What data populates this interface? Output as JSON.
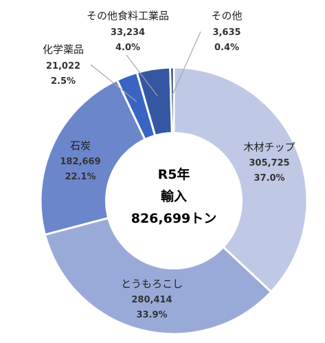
{
  "chart_data": {
    "type": "pie",
    "donut": true,
    "center_label": {
      "line1": "R5年",
      "line2": "輸入",
      "line3": "826,699トン"
    },
    "slices": [
      {
        "name": "木材チップ",
        "value": 305725,
        "value_label": "305,725",
        "percent": "37.0%",
        "color": "#bfc8e4"
      },
      {
        "name": "とうもろこし",
        "value": 280414,
        "value_label": "280,414",
        "percent": "33.9%",
        "color": "#9aaad8"
      },
      {
        "name": "石炭",
        "value": 182669,
        "value_label": "182,669",
        "percent": "22.1%",
        "color": "#6c86cb"
      },
      {
        "name": "化学薬品",
        "value": 21022,
        "value_label": "21,022",
        "percent": "2.5%",
        "color": "#3a64c3"
      },
      {
        "name": "その他食料工業品",
        "value": 33234,
        "value_label": "33,234",
        "percent": "4.0%",
        "color": "#3556a3"
      },
      {
        "name": "その他",
        "value": 3635,
        "value_label": "3,635",
        "percent": "0.4%",
        "color": "#203864"
      }
    ],
    "legend": "none"
  }
}
